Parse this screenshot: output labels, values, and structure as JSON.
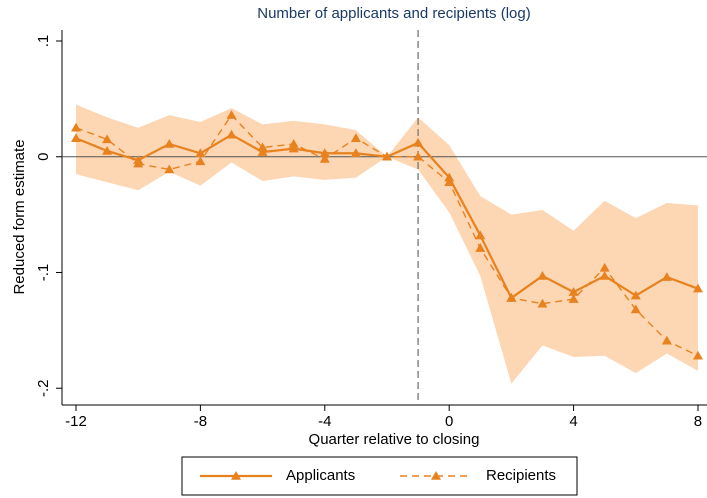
{
  "chart_data": {
    "type": "line",
    "title": "Number of applicants and recipients (log)",
    "x_label": "Quarter relative to closing",
    "y_label": "Reduced form estimate",
    "x": [
      -12,
      -11,
      -10,
      -9,
      -8,
      -7,
      -6,
      -5,
      -4,
      -3,
      -2,
      -1,
      0,
      1,
      2,
      3,
      4,
      5,
      6,
      7,
      8
    ],
    "series": [
      {
        "name": "Applicants",
        "color": "#e8821e",
        "dash": false,
        "values": [
          0.016,
          0.005,
          -0.003,
          0.011,
          0.003,
          0.019,
          0.004,
          0.007,
          0.003,
          0.003,
          0,
          0.012,
          -0.018,
          -0.068,
          -0.122,
          -0.103,
          -0.117,
          -0.103,
          -0.12,
          -0.104,
          -0.114
        ]
      },
      {
        "name": "Recipients",
        "color": "#e8821e",
        "dash": true,
        "values": [
          0.025,
          0.015,
          -0.006,
          -0.011,
          -0.004,
          0.036,
          0.008,
          0.011,
          -0.002,
          0.016,
          0,
          0,
          -0.022,
          -0.079,
          -0.122,
          -0.127,
          -0.123,
          -0.096,
          -0.132,
          -0.159,
          -0.172
        ]
      }
    ],
    "band": {
      "color": "#fdd6b3",
      "upper": [
        0.045,
        0.034,
        0.025,
        0.036,
        0.03,
        0.042,
        0.028,
        0.031,
        0.028,
        0.023,
        0,
        0.034,
        0.01,
        -0.034,
        -0.05,
        -0.046,
        -0.064,
        -0.038,
        -0.053,
        -0.04,
        -0.042
      ],
      "lower": [
        -0.015,
        -0.022,
        -0.029,
        -0.013,
        -0.025,
        -0.005,
        -0.021,
        -0.017,
        -0.02,
        -0.018,
        0,
        -0.011,
        -0.048,
        -0.103,
        -0.196,
        -0.163,
        -0.173,
        -0.172,
        -0.187,
        -0.17,
        -0.185
      ]
    },
    "xlim": [
      -12.45,
      8.29
    ],
    "ylim": [
      -0.2145,
      0.1095
    ],
    "xticks": [
      -12,
      -8,
      -4,
      0,
      4,
      8
    ],
    "yticks": [
      {
        "value": -0.2,
        "label": "-.2"
      },
      {
        "value": -0.1,
        "label": "-.1"
      },
      0,
      {
        "value": 0.1,
        "label": ".1"
      }
    ],
    "vline": -1,
    "hline": 0,
    "grid": false
  }
}
